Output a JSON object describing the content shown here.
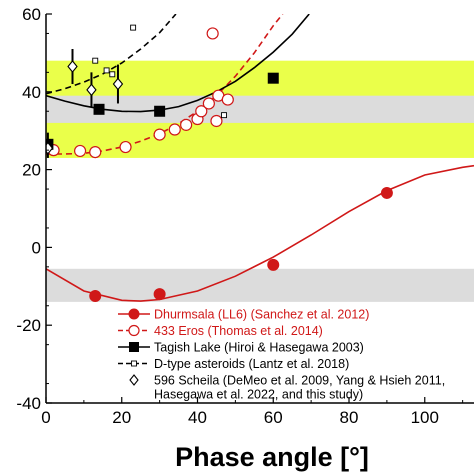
{
  "chart_data": {
    "type": "scatter",
    "xlabel": "Phase angle [°]",
    "ylabel": "",
    "xlim": [
      0,
      113
    ],
    "ylim": [
      -40,
      60
    ],
    "x_ticks": [
      0,
      20,
      40,
      60,
      80,
      100
    ],
    "y_ticks": [
      -40,
      -20,
      0,
      20,
      40,
      60
    ],
    "bands": [
      {
        "y0": 23,
        "y1": 48,
        "color": "#eaff4a"
      },
      {
        "y0": 32,
        "y1": 39,
        "color": "#dcdcdc"
      },
      {
        "y0": -14,
        "y1": -5.5,
        "color": "#dcdcdc"
      }
    ],
    "series": [
      {
        "name": "Dhurmsala (LL6) (Sanchez et al. 2012)",
        "color": "#d01818",
        "marker": "filled-circle",
        "line": "solid",
        "points": [
          [
            13,
            -12.5
          ],
          [
            30,
            -12
          ],
          [
            60,
            -4.5
          ],
          [
            90,
            14
          ]
        ],
        "fit": [
          [
            0,
            -5.5
          ],
          [
            10,
            -11.2
          ],
          [
            20,
            -13.6
          ],
          [
            25,
            -13.8
          ],
          [
            30,
            -13.4
          ],
          [
            40,
            -11.2
          ],
          [
            50,
            -7.4
          ],
          [
            60,
            -2.5
          ],
          [
            70,
            3.2
          ],
          [
            80,
            9.2
          ],
          [
            90,
            14.6
          ],
          [
            100,
            18.6
          ],
          [
            110,
            20.6
          ],
          [
            113,
            21
          ]
        ]
      },
      {
        "name": "433 Eros (Thomas et al. 2014)",
        "color": "#d01818",
        "marker": "open-circle",
        "line": "dashed",
        "points": [
          [
            2,
            25
          ],
          [
            9,
            24.8
          ],
          [
            13,
            24.5
          ],
          [
            21,
            25.8
          ],
          [
            30,
            29
          ],
          [
            34,
            30.3
          ],
          [
            37,
            31.5
          ],
          [
            40,
            33
          ],
          [
            41,
            35
          ],
          [
            43,
            37
          ],
          [
            44,
            55
          ],
          [
            45,
            32.5
          ],
          [
            45.5,
            39
          ],
          [
            48,
            38
          ]
        ],
        "fit": [
          [
            0,
            24
          ],
          [
            5,
            24
          ],
          [
            10,
            24.2
          ],
          [
            15,
            24.8
          ],
          [
            20,
            25.8
          ],
          [
            25,
            27.3
          ],
          [
            30,
            29.2
          ],
          [
            35,
            31.8
          ],
          [
            40,
            35
          ],
          [
            45,
            39
          ],
          [
            50,
            44
          ],
          [
            55,
            50
          ],
          [
            60,
            57
          ],
          [
            62.5,
            60
          ]
        ]
      },
      {
        "name": "Tagish Lake (Hiroi & Hasegawa 2003)",
        "color": "#000000",
        "marker": "filled-square",
        "line": "solid",
        "points": [
          [
            0.5,
            26.5
          ],
          [
            14,
            35.5
          ],
          [
            30,
            35
          ],
          [
            60,
            43.5
          ]
        ],
        "errors": [
          [
            0.5,
            23,
            29.5
          ]
        ],
        "fit": [
          [
            0,
            39
          ],
          [
            5,
            37.6
          ],
          [
            10,
            36.4
          ],
          [
            15,
            35.5
          ],
          [
            20,
            35
          ],
          [
            25,
            34.9
          ],
          [
            30,
            35.3
          ],
          [
            35,
            36.2
          ],
          [
            40,
            37.8
          ],
          [
            45,
            40
          ],
          [
            50,
            42.7
          ],
          [
            55,
            46.2
          ],
          [
            60,
            50.2
          ],
          [
            65,
            54.8
          ],
          [
            69.5,
            60
          ]
        ]
      },
      {
        "name": "D-type asteroids (Lantz et al. 2018)",
        "color": "#000000",
        "marker": "open-square",
        "line": "dashed",
        "points": [
          [
            13,
            48
          ],
          [
            16,
            45.5
          ],
          [
            17.5,
            44.5
          ],
          [
            23,
            56.5
          ],
          [
            47,
            34
          ]
        ],
        "fit": [
          [
            0,
            39.5
          ],
          [
            5,
            40.8
          ],
          [
            10,
            42.5
          ],
          [
            15,
            44.6
          ],
          [
            20,
            47.4
          ],
          [
            25,
            51
          ],
          [
            30,
            55.2
          ],
          [
            34.3,
            60
          ]
        ]
      },
      {
        "name": "596 Scheila (DeMeo et al. 2009, Yang & Hsieh 2011, Hasegawa et al. 2022, and this study)",
        "color": "#000000",
        "marker": "open-diamond",
        "line": "none",
        "points": [
          [
            0.5,
            25.5
          ],
          [
            7,
            46.5
          ],
          [
            12,
            40.5
          ],
          [
            19,
            42
          ]
        ],
        "errors": [
          [
            7,
            42,
            51
          ],
          [
            12,
            36,
            45
          ],
          [
            19,
            37,
            47
          ]
        ]
      }
    ],
    "legend": {
      "position": "bottom-center",
      "entries": [
        {
          "label": "Dhurmsala (LL6) (Sanchez et al. 2012)",
          "color": "#d01818",
          "marker": "filled-circle",
          "line": "solid"
        },
        {
          "label": "433 Eros (Thomas et al. 2014)",
          "color": "#d01818",
          "marker": "open-circle",
          "line": "dashed"
        },
        {
          "label": "Tagish Lake (Hiroi & Hasegawa 2003)",
          "color": "#000000",
          "marker": "filled-square",
          "line": "solid"
        },
        {
          "label": "D-type asteroids (Lantz et al. 2018)",
          "color": "#000000",
          "marker": "open-square",
          "line": "dashed"
        },
        {
          "label": "596 Scheila (DeMeo et al. 2009, Yang & Hsieh 2011,",
          "label2": "Hasegawa et al. 2022, and this study)",
          "color": "#000000",
          "marker": "open-diamond",
          "line": "none"
        }
      ]
    }
  }
}
